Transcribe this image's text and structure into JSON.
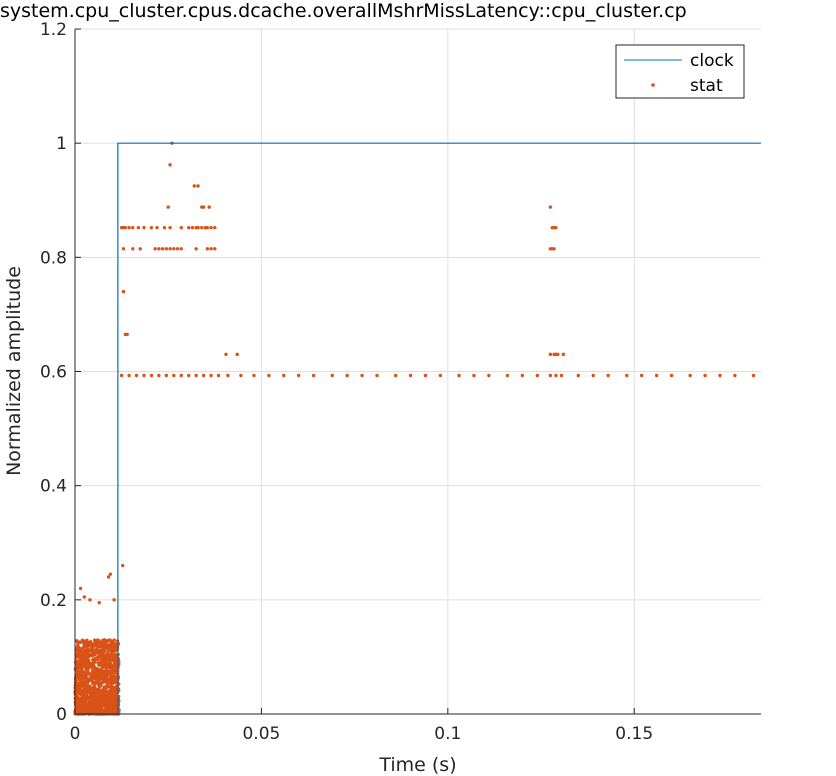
{
  "chart_data": {
    "type": "line",
    "title": "system.cpu_cluster.cpus.dcache.overallMshrMissLatency::cpu_cluster.cp",
    "xlabel": "Time (s)",
    "ylabel": "Normalized amplitude",
    "xlim": [
      0,
      0.184
    ],
    "ylim": [
      0,
      1.2
    ],
    "x_ticks": [
      0,
      0.05,
      0.1,
      0.15
    ],
    "x_tick_labels": [
      "0",
      "0.05",
      "0.1",
      "0.15"
    ],
    "y_ticks": [
      0,
      0.2,
      0.4,
      0.6,
      0.8,
      1.0,
      1.2
    ],
    "y_tick_labels": [
      "0",
      "0.2",
      "0.4",
      "0.6",
      "0.8",
      "1",
      "1.2"
    ],
    "grid": true,
    "legend_position": "top-right",
    "series": [
      {
        "name": "clock",
        "style": "line",
        "color": "#0072BD",
        "x": [
          0,
          0.0115,
          0.0115,
          0.184
        ],
        "y": [
          0,
          0,
          1,
          1
        ]
      },
      {
        "name": "stat",
        "style": "points",
        "color": "#D95319",
        "x": [
          0.0015,
          0.0025,
          0.004,
          0.0065,
          0.009,
          0.0095,
          0.0105,
          0.0128,
          0.013,
          0.0135,
          0.014,
          0.025,
          0.0255,
          0.026,
          0.032,
          0.033,
          0.034,
          0.0345,
          0.035,
          0.036,
          0.0125,
          0.013,
          0.0135,
          0.0145,
          0.0155,
          0.017,
          0.0185,
          0.0205,
          0.022,
          0.024,
          0.0255,
          0.0285,
          0.0305,
          0.0315,
          0.0325,
          0.033,
          0.034,
          0.035,
          0.0355,
          0.0365,
          0.0375,
          0.013,
          0.0155,
          0.0175,
          0.0215,
          0.0225,
          0.0235,
          0.0245,
          0.0255,
          0.0265,
          0.0275,
          0.0285,
          0.0325,
          0.0355,
          0.0365,
          0.0375,
          0.0405,
          0.0435,
          0.0125,
          0.0145,
          0.0165,
          0.0185,
          0.0205,
          0.0225,
          0.0245,
          0.0265,
          0.0285,
          0.0305,
          0.0325,
          0.0345,
          0.0365,
          0.0385,
          0.041,
          0.0445,
          0.048,
          0.052,
          0.056,
          0.06,
          0.064,
          0.069,
          0.073,
          0.077,
          0.081,
          0.086,
          0.09,
          0.094,
          0.098,
          0.103,
          0.107,
          0.111,
          0.116,
          0.12,
          0.124,
          0.1275,
          0.129,
          0.1305,
          0.135,
          0.139,
          0.143,
          0.148,
          0.152,
          0.156,
          0.16,
          0.165,
          0.169,
          0.173,
          0.177,
          0.182,
          0.1275,
          0.128,
          0.1285,
          0.129,
          0.128,
          0.1285,
          0.1275,
          0.1285,
          0.129,
          0.1275,
          0.1295,
          0.131
        ],
        "y": [
          0.22,
          0.205,
          0.2,
          0.195,
          0.24,
          0.245,
          0.2,
          0.26,
          0.74,
          0.665,
          0.665,
          0.888,
          0.962,
          1.0,
          0.925,
          0.925,
          0.888,
          0.888,
          0.852,
          0.888,
          0.852,
          0.852,
          0.852,
          0.852,
          0.852,
          0.852,
          0.852,
          0.852,
          0.852,
          0.852,
          0.852,
          0.852,
          0.852,
          0.852,
          0.852,
          0.852,
          0.852,
          0.852,
          0.852,
          0.852,
          0.852,
          0.815,
          0.815,
          0.815,
          0.815,
          0.815,
          0.815,
          0.815,
          0.815,
          0.815,
          0.815,
          0.815,
          0.815,
          0.815,
          0.815,
          0.815,
          0.63,
          0.63,
          0.593,
          0.593,
          0.593,
          0.593,
          0.593,
          0.593,
          0.593,
          0.593,
          0.593,
          0.593,
          0.593,
          0.593,
          0.593,
          0.593,
          0.593,
          0.593,
          0.593,
          0.593,
          0.593,
          0.593,
          0.593,
          0.593,
          0.593,
          0.593,
          0.593,
          0.593,
          0.593,
          0.593,
          0.593,
          0.593,
          0.593,
          0.593,
          0.593,
          0.593,
          0.593,
          0.593,
          0.593,
          0.593,
          0.593,
          0.593,
          0.593,
          0.593,
          0.593,
          0.593,
          0.593,
          0.593,
          0.593,
          0.593,
          0.593,
          0.593,
          0.888,
          0.852,
          0.852,
          0.852,
          0.815,
          0.815,
          0.815,
          0.63,
          0.63,
          0.63,
          0.63,
          0.63
        ]
      }
    ]
  }
}
